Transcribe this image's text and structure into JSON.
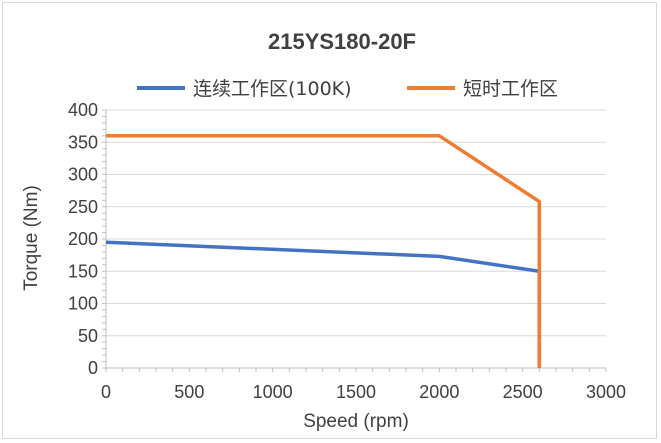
{
  "chart_data": {
    "type": "line",
    "title": "215YS180-20F",
    "xlabel": "Speed (rpm)",
    "ylabel": "Torque (Nm)",
    "xlim": [
      0,
      3000
    ],
    "ylim": [
      0,
      400
    ],
    "x_ticks": [
      "0",
      "500",
      "1000",
      "1500",
      "2000",
      "2500",
      "3000"
    ],
    "y_ticks": [
      "0",
      "50",
      "100",
      "150",
      "200",
      "250",
      "300",
      "350",
      "400"
    ],
    "grid": "horizontal",
    "legend_position": "top",
    "series": [
      {
        "name": "连续工作区(100K)",
        "color": "#4472c4",
        "points": [
          [
            0,
            195
          ],
          [
            2000,
            173
          ],
          [
            2600,
            150
          ],
          [
            2600,
            0
          ]
        ]
      },
      {
        "name": "短时工作区",
        "color": "#ed7d31",
        "points": [
          [
            0,
            360
          ],
          [
            2000,
            360
          ],
          [
            2600,
            258
          ],
          [
            2600,
            0
          ]
        ]
      }
    ]
  }
}
